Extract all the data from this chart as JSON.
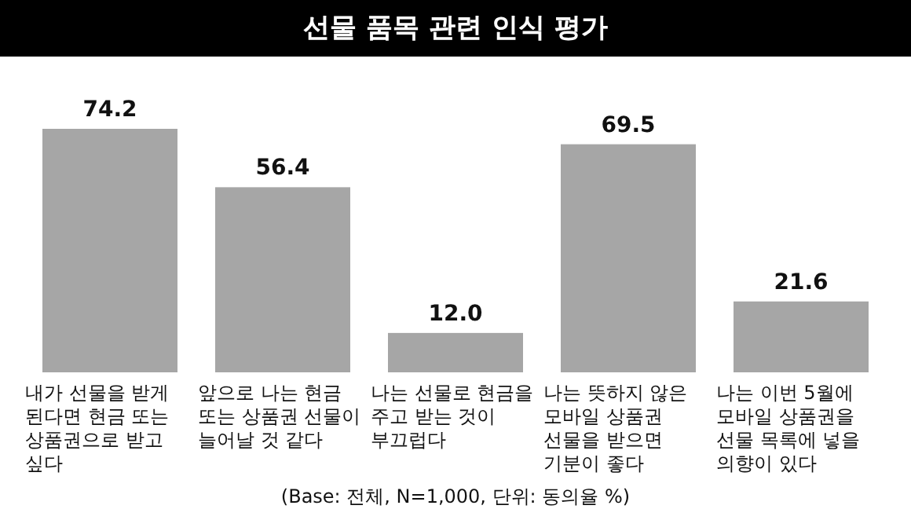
{
  "chart_data": {
    "type": "bar",
    "title": "선물 품목 관련 인식 평가",
    "categories": [
      "내가 선물을 받게 된다면 현금 또는 상품권으로 받고 싶다",
      "앞으로 나는 현금 또는 상품권 선물이 늘어날 것 같다",
      "나는 선물로 현금을 주고 받는 것이 부끄럽다",
      "나는 뜻하지 않은 모바일 상품권 선물을 받으면 기분이 좋다",
      "나는 이번 5월에 모바일 상품권을 선물 목록에 넣을 의향이 있다"
    ],
    "values": [
      74.2,
      56.4,
      12.0,
      69.5,
      21.6
    ],
    "color": "#a6a6a6",
    "value_labels": [
      "74.2",
      "56.4",
      "12.0",
      "69.5",
      "21.6"
    ],
    "annotations": [
      "(Base: 전체, N=1,000, 단위: 동의율 %)"
    ]
  }
}
